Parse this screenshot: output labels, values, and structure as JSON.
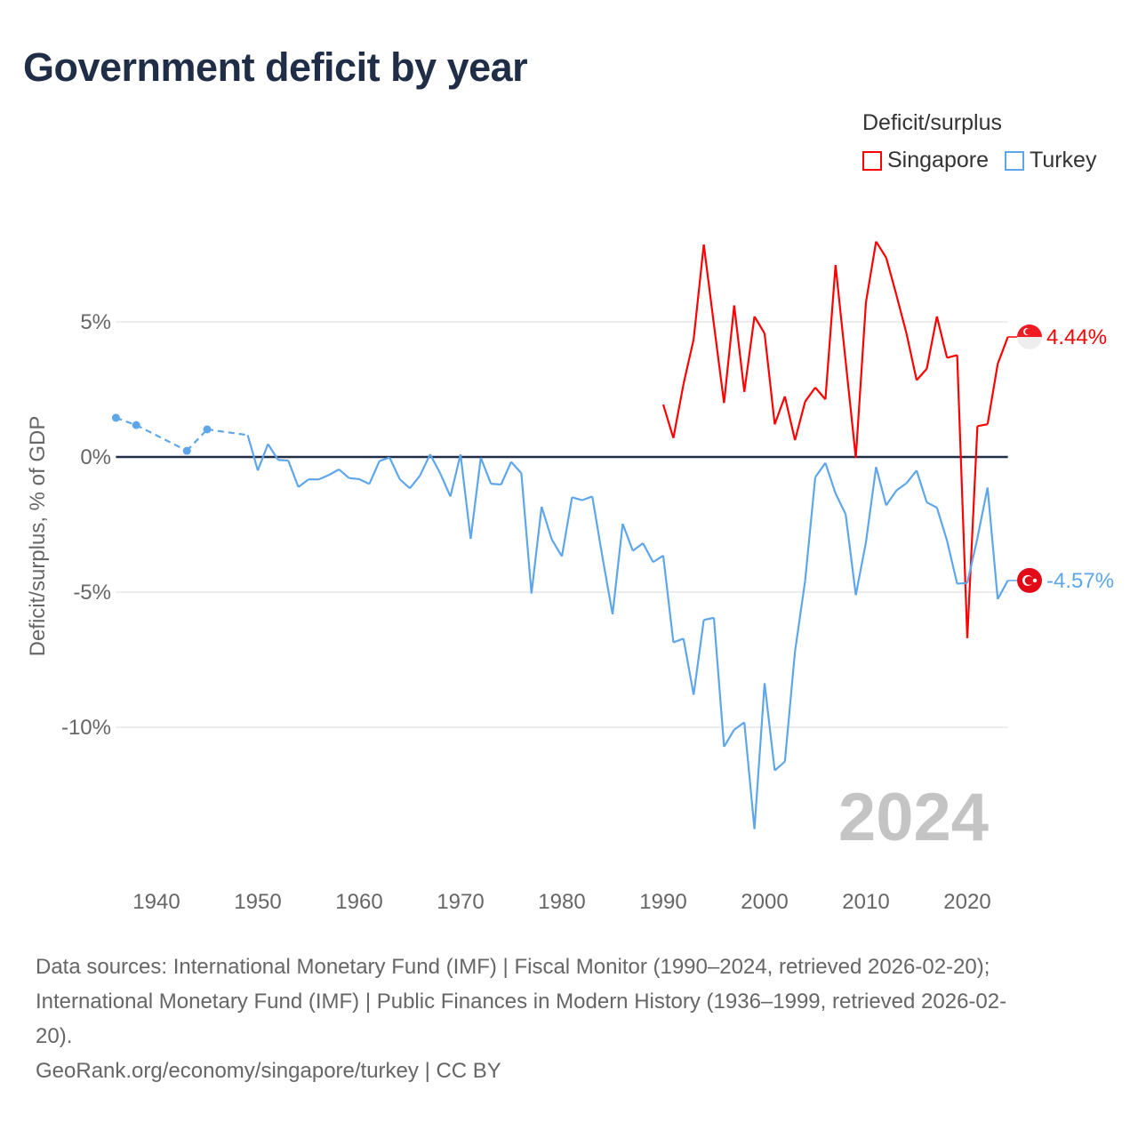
{
  "title": "Government deficit by year",
  "legend": {
    "title": "Deficit/surplus",
    "items": [
      {
        "label": "Singapore",
        "color": "#ff0000"
      },
      {
        "label": "Turkey",
        "color": "#5ea6ea"
      }
    ]
  },
  "footer": {
    "line1": "Data sources: International Monetary Fund (IMF) | Fiscal Monitor (1990–2024, retrieved 2026-02-20);",
    "line2": "International Monetary Fund (IMF) | Public Finances in Modern History (1936–1999, retrieved 2026-02-",
    "line3": "20).",
    "line4": "GeoRank.org/economy/singapore/turkey | CC BY"
  },
  "chart_data": {
    "type": "line",
    "title": "Government deficit by year",
    "ylabel": "Deficit/surplus, % of GDP",
    "xlabel": "",
    "xlim": [
      1936,
      2024
    ],
    "ylim": [
      -14,
      8
    ],
    "x_ticks": [
      1940,
      1950,
      1960,
      1970,
      1980,
      1990,
      2000,
      2010,
      2020
    ],
    "x_tick_labels": [
      "1940",
      "1950",
      "1960",
      "1970",
      "1980",
      "1990",
      "2000",
      "2010",
      "2020"
    ],
    "y_ticks": [
      5,
      0,
      -5,
      -10
    ],
    "y_tick_labels": [
      "5%",
      "0%",
      "-5%",
      "-10%"
    ],
    "grid": true,
    "legend_position": "top-right",
    "current_year_label": "2024",
    "series": [
      {
        "name": "Singapore",
        "color": "#ff0000",
        "end_label": "4.44%",
        "flag": "singapore-flag",
        "x": [
          1990,
          1991,
          1992,
          1993,
          1994,
          1995,
          1996,
          1997,
          1998,
          1999,
          2000,
          2001,
          2002,
          2003,
          2004,
          2005,
          2006,
          2007,
          2008,
          2009,
          2010,
          2011,
          2012,
          2013,
          2014,
          2015,
          2016,
          2017,
          2018,
          2019,
          2020,
          2021,
          2022,
          2023,
          2024
        ],
        "values": [
          1.94,
          0.7,
          2.7,
          4.35,
          7.86,
          4.9,
          2.0,
          5.61,
          2.41,
          5.2,
          4.57,
          1.21,
          2.24,
          0.62,
          2.05,
          2.57,
          2.13,
          7.1,
          3.53,
          -0.03,
          5.72,
          7.97,
          7.37,
          6.0,
          4.57,
          2.84,
          3.26,
          5.2,
          3.67,
          3.77,
          -6.7,
          1.14,
          1.21,
          3.44,
          4.44
        ]
      },
      {
        "name": "Turkey",
        "color": "#5ea6ea",
        "end_label": "-4.57%",
        "flag": "turkey-flag",
        "x": [
          1936,
          1938,
          1943,
          1945,
          1949,
          1950,
          1951,
          1952,
          1953,
          1954,
          1955,
          1956,
          1957,
          1958,
          1959,
          1960,
          1961,
          1962,
          1963,
          1964,
          1965,
          1966,
          1967,
          1968,
          1969,
          1970,
          1971,
          1972,
          1973,
          1974,
          1975,
          1976,
          1977,
          1978,
          1979,
          1980,
          1981,
          1982,
          1983,
          1984,
          1985,
          1986,
          1987,
          1988,
          1989,
          1990,
          1991,
          1992,
          1993,
          1994,
          1995,
          1996,
          1997,
          1998,
          1999,
          2000,
          2001,
          2002,
          2003,
          2004,
          2005,
          2006,
          2007,
          2008,
          2009,
          2010,
          2011,
          2012,
          2013,
          2014,
          2015,
          2016,
          2017,
          2018,
          2019,
          2020,
          2021,
          2022,
          2023,
          2024
        ],
        "values": [
          1.45,
          1.18,
          0.23,
          1.02,
          0.81,
          -0.5,
          0.48,
          -0.11,
          -0.13,
          -1.11,
          -0.83,
          -0.83,
          -0.67,
          -0.46,
          -0.78,
          -0.82,
          -1.0,
          -0.15,
          -0.02,
          -0.82,
          -1.16,
          -0.69,
          0.1,
          -0.61,
          -1.46,
          0.1,
          -3.03,
          -0.03,
          -0.99,
          -1.02,
          -0.18,
          -0.6,
          -5.05,
          -1.84,
          -3.05,
          -3.68,
          -1.49,
          -1.6,
          -1.46,
          -3.7,
          -5.82,
          -2.47,
          -3.47,
          -3.19,
          -3.89,
          -3.65,
          -6.86,
          -6.72,
          -8.8,
          -6.03,
          -5.95,
          -10.72,
          -10.09,
          -9.82,
          -13.77,
          -8.37,
          -11.6,
          -11.27,
          -7.2,
          -4.58,
          -0.75,
          -0.22,
          -1.35,
          -2.12,
          -5.11,
          -3.16,
          -0.37,
          -1.79,
          -1.24,
          -0.97,
          -0.5,
          -1.68,
          -1.87,
          -3.1,
          -4.69,
          -4.66,
          -3.0,
          -1.13,
          -5.26,
          -4.57
        ]
      }
    ]
  }
}
